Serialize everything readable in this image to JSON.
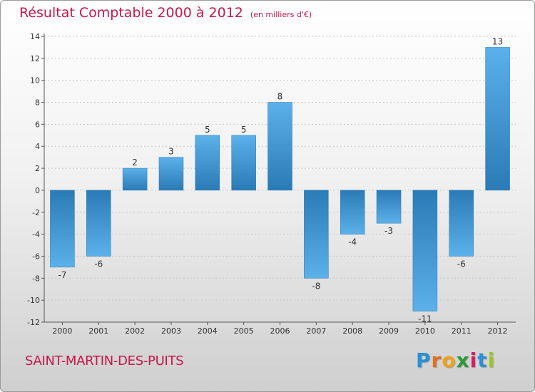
{
  "title": {
    "main": "Résultat Comptable 2000 à 2012",
    "unit": "(en milliers d'€)"
  },
  "location": "SAINT-MARTIN-DES-PUITS",
  "brand": {
    "name": "Proxiti",
    "letters": [
      "P",
      "r",
      "o",
      "x",
      "i",
      "t",
      "i"
    ],
    "letter_colors": [
      "#2a8fd6",
      "#e36f1f",
      "#f0a21a",
      "#2e9a3a",
      "#d81b60",
      "#2a8fd6",
      "#9bc623"
    ]
  },
  "colors": {
    "title": "#c6184d",
    "bar_dark": "#2a7ab6",
    "bar_light": "#5cb1ea",
    "grid": "#c8c8c8"
  },
  "chart_data": {
    "type": "bar",
    "categories": [
      "2000",
      "2001",
      "2002",
      "2003",
      "2004",
      "2005",
      "2006",
      "2007",
      "2008",
      "2009",
      "2010",
      "2011",
      "2012"
    ],
    "values": [
      -7,
      -6,
      2,
      3,
      5,
      5,
      8,
      -8,
      -4,
      -3,
      -11,
      -6,
      13
    ],
    "title": "Résultat Comptable 2000 à 2012",
    "ylim": [
      -12,
      14
    ],
    "yticks": [
      -12,
      -10,
      -8,
      -6,
      -4,
      -2,
      0,
      2,
      4,
      6,
      8,
      10,
      12,
      14
    ],
    "grid": "horizontal dotted"
  }
}
